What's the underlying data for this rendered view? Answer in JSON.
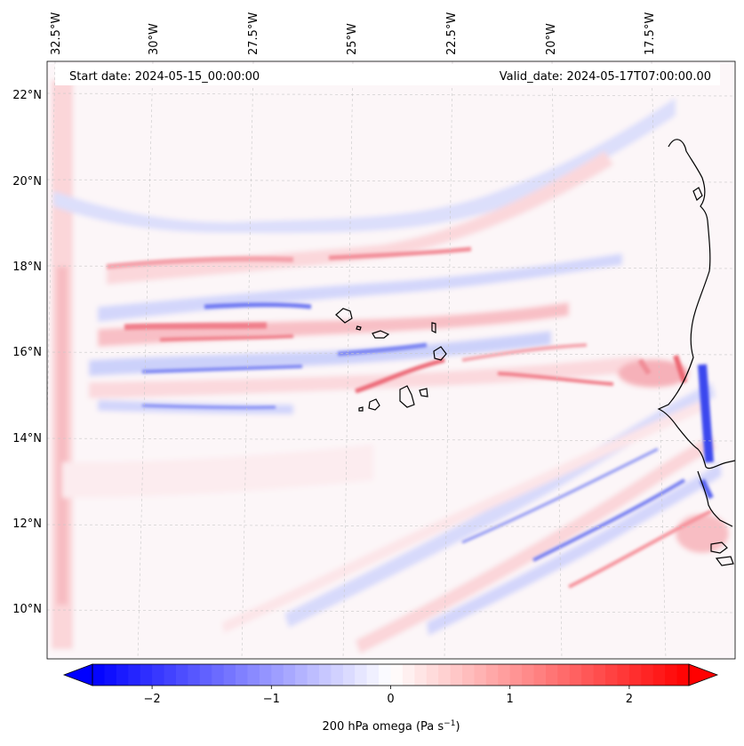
{
  "header": {
    "start_date": "Start date: 2024-05-15_00:00:00",
    "valid_date": "Valid_date: 2024-05-17T07:00:00.00"
  },
  "map": {
    "lon_labels": [
      "32.5°W",
      "30°W",
      "27.5°W",
      "25°W",
      "22.5°W",
      "20°W",
      "17.5°W"
    ],
    "lat_labels": [
      "22°N",
      "20°N",
      "18°N",
      "16°N",
      "14°N",
      "12°N",
      "10°N"
    ],
    "gridlines": "dashed-grey",
    "coastline_color": "#000000"
  },
  "colorbar": {
    "label_prefix": "200 hPa omega (Pa s",
    "label_exp": "−1",
    "label_suffix": ")",
    "tick_labels": [
      "−2",
      "−1",
      "0",
      "1",
      "2"
    ],
    "tick_values": [
      -2,
      -1,
      0,
      1,
      2
    ],
    "range": [
      -2.5,
      2.5
    ],
    "colormap": "bwr",
    "extend": "both",
    "color_neg": "#0000ff",
    "color_zero": "#ffffff",
    "color_pos": "#ff0000"
  }
}
